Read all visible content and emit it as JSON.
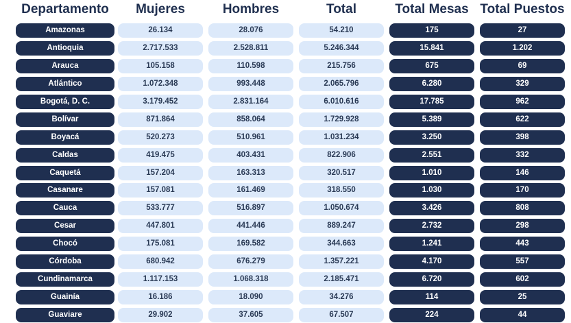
{
  "headers": [
    "Departamento",
    "Mujeres",
    "Hombres",
    "Total",
    "Total Mesas",
    "Total Puestos"
  ],
  "colors": {
    "dark": "#1f2f50",
    "light": "#dce9fa",
    "header_text": "#1f2f4f"
  },
  "rows": [
    [
      "Amazonas",
      "26.134",
      "28.076",
      "54.210",
      "175",
      "27"
    ],
    [
      "Antioquia",
      "2.717.533",
      "2.528.811",
      "5.246.344",
      "15.841",
      "1.202"
    ],
    [
      "Arauca",
      "105.158",
      "110.598",
      "215.756",
      "675",
      "69"
    ],
    [
      "Atlántico",
      "1.072.348",
      "993.448",
      "2.065.796",
      "6.280",
      "329"
    ],
    [
      "Bogotá, D. C.",
      "3.179.452",
      "2.831.164",
      "6.010.616",
      "17.785",
      "962"
    ],
    [
      "Bolívar",
      "871.864",
      "858.064",
      "1.729.928",
      "5.389",
      "622"
    ],
    [
      "Boyacá",
      "520.273",
      "510.961",
      "1.031.234",
      "3.250",
      "398"
    ],
    [
      "Caldas",
      "419.475",
      "403.431",
      "822.906",
      "2.551",
      "332"
    ],
    [
      "Caquetá",
      "157.204",
      "163.313",
      "320.517",
      "1.010",
      "146"
    ],
    [
      "Casanare",
      "157.081",
      "161.469",
      "318.550",
      "1.030",
      "170"
    ],
    [
      "Cauca",
      "533.777",
      "516.897",
      "1.050.674",
      "3.426",
      "808"
    ],
    [
      "Cesar",
      "447.801",
      "441.446",
      "889.247",
      "2.732",
      "298"
    ],
    [
      "Chocó",
      "175.081",
      "169.582",
      "344.663",
      "1.241",
      "443"
    ],
    [
      "Córdoba",
      "680.942",
      "676.279",
      "1.357.221",
      "4.170",
      "557"
    ],
    [
      "Cundinamarca",
      "1.117.153",
      "1.068.318",
      "2.185.471",
      "6.720",
      "602"
    ],
    [
      "Guainía",
      "16.186",
      "18.090",
      "34.276",
      "114",
      "25"
    ],
    [
      "Guaviare",
      "29.902",
      "37.605",
      "67.507",
      "224",
      "44"
    ]
  ]
}
